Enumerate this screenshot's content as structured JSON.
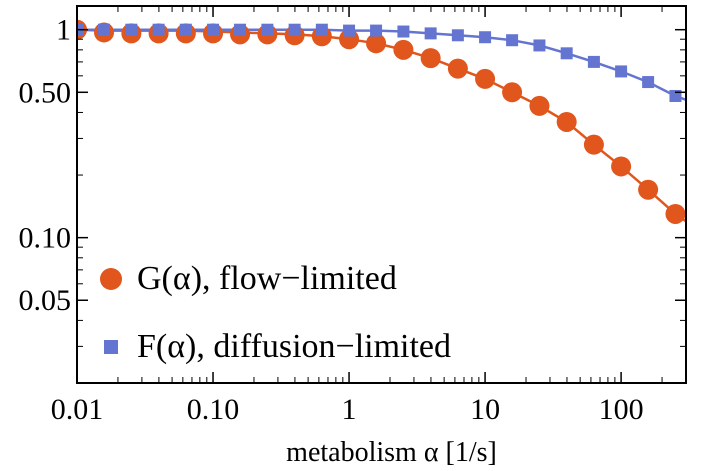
{
  "colors": {
    "orange": "#E0561D",
    "blue": "#6475D1",
    "frame": "#000000"
  },
  "legend": {
    "items": [
      {
        "label": "G(α), flow−limited",
        "marker": "circle",
        "color": "#E0561D"
      },
      {
        "label": "F(α), diffusion−limited",
        "marker": "square",
        "color": "#6475D1"
      }
    ]
  },
  "chart_data": {
    "type": "scatter",
    "title": "",
    "xlabel": "metabolism α [1/s]",
    "ylabel": "",
    "xscale": "log",
    "yscale": "log",
    "xlim": [
      0.01,
      300
    ],
    "ylim": [
      0.02,
      1.3
    ],
    "legend_position": "bottom-left",
    "grid": false,
    "x_ticks": [
      {
        "value": 0.01,
        "label": "0.01"
      },
      {
        "value": 0.1,
        "label": "0.10"
      },
      {
        "value": 1,
        "label": "1"
      },
      {
        "value": 10,
        "label": "10"
      },
      {
        "value": 100,
        "label": "100"
      }
    ],
    "y_ticks": [
      {
        "value": 1,
        "label": "1"
      },
      {
        "value": 0.5,
        "label": "0.50"
      },
      {
        "value": 0.1,
        "label": "0.10"
      },
      {
        "value": 0.05,
        "label": "0.05"
      }
    ],
    "series": [
      {
        "name": "G(α), flow−limited",
        "marker": "circle",
        "color": "#E0561D",
        "x": [
          0.01,
          0.0158,
          0.0251,
          0.0398,
          0.0631,
          0.1,
          0.158,
          0.251,
          0.398,
          0.631,
          1.0,
          1.58,
          2.51,
          3.98,
          6.31,
          10,
          15.8,
          25.1,
          39.8,
          63.1,
          100,
          158,
          251
        ],
        "y": [
          1.0,
          0.97,
          0.96,
          0.96,
          0.96,
          0.96,
          0.95,
          0.95,
          0.94,
          0.93,
          0.9,
          0.86,
          0.8,
          0.73,
          0.65,
          0.58,
          0.5,
          0.43,
          0.36,
          0.28,
          0.22,
          0.17,
          0.13
        ],
        "curve_x": [
          0.01,
          0.0158,
          0.0251,
          0.0398,
          0.0631,
          0.1,
          0.158,
          0.251,
          0.398,
          0.631,
          1.0,
          1.58,
          2.51,
          3.98,
          6.31,
          10,
          15.8,
          25.1,
          39.8,
          63.1,
          100,
          158,
          251,
          300
        ],
        "curve_y": [
          1.0,
          0.99,
          0.99,
          0.99,
          0.99,
          0.98,
          0.97,
          0.96,
          0.95,
          0.93,
          0.9,
          0.86,
          0.8,
          0.73,
          0.65,
          0.58,
          0.5,
          0.43,
          0.36,
          0.28,
          0.22,
          0.17,
          0.13,
          0.12
        ]
      },
      {
        "name": "F(α), diffusion−limited",
        "marker": "square",
        "color": "#6475D1",
        "x": [
          0.01,
          0.0158,
          0.0251,
          0.0398,
          0.0631,
          0.1,
          0.158,
          0.251,
          0.398,
          0.631,
          1.0,
          1.58,
          2.51,
          3.98,
          6.31,
          10,
          15.8,
          25.1,
          39.8,
          63.1,
          100,
          158,
          251
        ],
        "y": [
          1.0,
          1.0,
          1.0,
          1.0,
          1.0,
          1.0,
          1.0,
          1.0,
          1.0,
          1.0,
          0.99,
          0.99,
          0.98,
          0.96,
          0.94,
          0.92,
          0.89,
          0.84,
          0.77,
          0.7,
          0.63,
          0.56,
          0.48
        ],
        "curve_x": [
          0.01,
          0.0158,
          0.0251,
          0.0398,
          0.0631,
          0.1,
          0.158,
          0.251,
          0.398,
          0.631,
          1.0,
          1.58,
          2.51,
          3.98,
          6.31,
          10,
          15.8,
          25.1,
          39.8,
          63.1,
          100,
          158,
          251,
          300
        ],
        "curve_y": [
          1.0,
          1.0,
          1.0,
          1.0,
          1.0,
          1.0,
          1.0,
          1.0,
          1.0,
          1.0,
          0.99,
          0.99,
          0.98,
          0.96,
          0.94,
          0.92,
          0.89,
          0.84,
          0.77,
          0.7,
          0.63,
          0.56,
          0.48,
          0.46
        ]
      }
    ]
  }
}
